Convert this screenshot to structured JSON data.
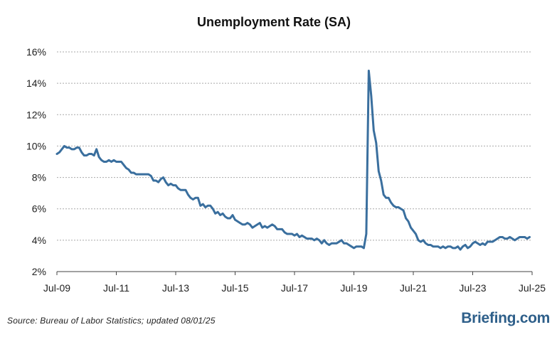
{
  "colors": {
    "line": "#3a6f9e",
    "grid": "#a9a9a9",
    "brand": "#2e5f8a"
  },
  "source": "Source: Bureau of Labor Statistics; updated 08/01/25",
  "brand": "Briefing.com",
  "chart_data": {
    "type": "line",
    "title": "Unemployment Rate (SA)",
    "xlabel": "",
    "ylabel": "",
    "ylim": [
      2,
      16
    ],
    "xlim": [
      "2009-07",
      "2025-07"
    ],
    "y_ticks": [
      2,
      4,
      6,
      8,
      10,
      12,
      14,
      16
    ],
    "y_tick_labels": [
      "2%",
      "4%",
      "6%",
      "8%",
      "10%",
      "12%",
      "14%",
      "16%"
    ],
    "x_tick_dates": [
      "2009-07",
      "2011-07",
      "2013-07",
      "2015-07",
      "2017-07",
      "2019-07",
      "2021-07",
      "2023-07",
      "2025-07"
    ],
    "x_tick_labels": [
      "Jul-09",
      "Jul-11",
      "Jul-13",
      "Jul-15",
      "Jul-17",
      "Jul-19",
      "Jul-21",
      "Jul-23",
      "Jul-25"
    ],
    "grid": "horizontal dashed",
    "legend": "none",
    "series": [
      {
        "start": "2009-07",
        "frequency": "monthly",
        "values": [
          9.5,
          9.6,
          9.8,
          10.0,
          9.9,
          9.9,
          9.8,
          9.8,
          9.9,
          9.9,
          9.6,
          9.4,
          9.4,
          9.5,
          9.5,
          9.4,
          9.8,
          9.3,
          9.1,
          9.0,
          9.0,
          9.1,
          9.0,
          9.1,
          9.0,
          9.0,
          9.0,
          8.8,
          8.6,
          8.5,
          8.3,
          8.3,
          8.2,
          8.2,
          8.2,
          8.2,
          8.2,
          8.2,
          8.1,
          7.8,
          7.8,
          7.7,
          7.9,
          8.0,
          7.7,
          7.5,
          7.6,
          7.5,
          7.5,
          7.3,
          7.2,
          7.2,
          7.2,
          6.9,
          6.7,
          6.6,
          6.7,
          6.7,
          6.2,
          6.3,
          6.1,
          6.2,
          6.2,
          6.0,
          5.7,
          5.8,
          5.6,
          5.7,
          5.5,
          5.4,
          5.4,
          5.6,
          5.3,
          5.2,
          5.1,
          5.0,
          5.0,
          5.1,
          5.0,
          4.8,
          4.9,
          5.0,
          5.1,
          4.8,
          4.9,
          4.8,
          4.9,
          5.0,
          4.9,
          4.7,
          4.7,
          4.7,
          4.5,
          4.4,
          4.4,
          4.4,
          4.3,
          4.4,
          4.2,
          4.3,
          4.2,
          4.1,
          4.1,
          4.1,
          4.0,
          4.1,
          4.0,
          3.8,
          4.0,
          3.8,
          3.7,
          3.8,
          3.8,
          3.8,
          3.9,
          4.0,
          3.8,
          3.8,
          3.7,
          3.6,
          3.5,
          3.6,
          3.6,
          3.6,
          3.5,
          4.4,
          14.8,
          13.2,
          11.0,
          10.2,
          8.4,
          7.8,
          6.9,
          6.7,
          6.7,
          6.4,
          6.2,
          6.1,
          6.1,
          6.0,
          5.9,
          5.4,
          5.2,
          4.8,
          4.6,
          4.4,
          4.0,
          3.9,
          4.0,
          3.8,
          3.7,
          3.7,
          3.6,
          3.6,
          3.6,
          3.5,
          3.6,
          3.5,
          3.6,
          3.6,
          3.5,
          3.5,
          3.6,
          3.4,
          3.6,
          3.7,
          3.5,
          3.6,
          3.8,
          3.9,
          3.8,
          3.7,
          3.8,
          3.7,
          3.9,
          3.9,
          3.9,
          4.0,
          4.1,
          4.2,
          4.2,
          4.1,
          4.1,
          4.2,
          4.1,
          4.0,
          4.1,
          4.2,
          4.2,
          4.2,
          4.1,
          4.2
        ]
      }
    ]
  }
}
